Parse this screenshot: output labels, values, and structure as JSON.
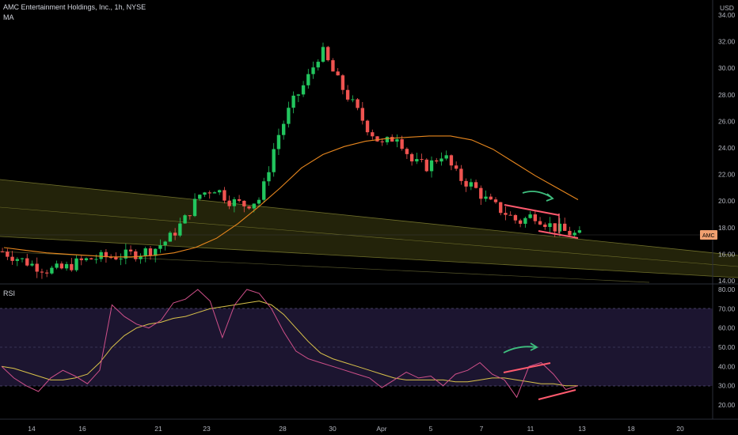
{
  "header": {
    "title": "AMC Entertainment Holdings, Inc., 1h, NYSE",
    "ma_label": "MA",
    "rsi_label": "RSI",
    "currency": "USD",
    "ticker_badge": "AMC"
  },
  "colors": {
    "background": "#000000",
    "up_candle": "#26a69a",
    "up_candle_bright": "#22c55e",
    "down_candle": "#ef5350",
    "ma_line": "#e8871e",
    "channel_fill": "#3a3a10",
    "rsi_line": "#d0508a",
    "rsi_ma_line": "#d9c24a",
    "rsi_band": "#1c1530",
    "trend_lines": "#ff5a6e",
    "arrow": "#3fbf7f",
    "ticker_badge": "#f0a070"
  },
  "chart_data": [
    {
      "type": "candlestick",
      "title": "AMC Entertainment Holdings, Inc., 1h, NYSE",
      "ylabel": "USD",
      "ylim": [
        14,
        35
      ],
      "y_ticks": [
        "34.00",
        "32.00",
        "30.00",
        "28.00",
        "26.00",
        "24.00",
        "22.00",
        "20.00",
        "18.00",
        "16.00",
        "14.00"
      ],
      "x_ticks": [
        "14",
        "16",
        "21",
        "23",
        "28",
        "30",
        "Apr",
        "5",
        "7",
        "11",
        "13",
        "18",
        "20"
      ],
      "series": [
        {
          "name": "MA",
          "values": [
            16.5,
            16.3,
            16.1,
            16.0,
            15.9,
            15.8,
            15.8,
            15.9,
            16.1,
            16.5,
            17.2,
            18.3,
            19.6,
            21.0,
            22.5,
            23.5,
            24.1,
            24.5,
            24.7,
            24.8,
            24.9,
            24.9,
            24.6,
            23.9,
            22.9,
            21.9,
            21.0,
            20.1
          ]
        }
      ],
      "closes_approx": [
        16.2,
        15.7,
        15.2,
        14.8,
        14.9,
        15.4,
        15.7,
        15.8,
        15.9,
        16.1,
        16.4,
        17.2,
        18.6,
        20.5,
        21.0,
        20.0,
        19.7,
        20.2,
        24.5,
        27.2,
        29.0,
        31.4,
        29.2,
        27.4,
        25.6,
        24.2,
        25.0,
        22.9,
        22.6,
        23.6,
        21.8,
        21.1,
        19.9,
        19.2,
        18.4,
        19.0,
        18.2,
        17.7,
        17.4
      ],
      "annotations": [
        {
          "type": "trend_line",
          "from": 19.9,
          "to": 19.0
        },
        {
          "type": "trend_line",
          "from": 17.8,
          "to": 17.3
        }
      ]
    },
    {
      "type": "line",
      "title": "RSI",
      "ylim": [
        14,
        82
      ],
      "y_ticks": [
        "80.00",
        "70.00",
        "60.00",
        "50.00",
        "40.00",
        "30.00",
        "20.00"
      ],
      "overbought": 70,
      "oversold": 30,
      "series": [
        {
          "name": "RSI",
          "values": [
            40,
            34,
            30,
            27,
            34,
            38,
            35,
            31,
            38,
            72,
            66,
            62,
            60,
            64,
            73,
            75,
            80,
            74,
            55,
            72,
            80,
            78,
            70,
            58,
            48,
            44,
            42,
            40,
            38,
            36,
            34,
            29,
            33,
            37,
            34,
            35,
            30,
            36,
            38,
            42,
            36,
            33,
            24,
            40,
            42,
            36,
            28,
            30
          ]
        },
        {
          "name": "RSI MA",
          "values": [
            40,
            39,
            37,
            35,
            33,
            33,
            34,
            36,
            42,
            50,
            56,
            60,
            62,
            63,
            65,
            66,
            68,
            70,
            71,
            72,
            73,
            74,
            72,
            67,
            60,
            53,
            47,
            44,
            42,
            40,
            38,
            36,
            34,
            33,
            33,
            33,
            33,
            32,
            32,
            33,
            34,
            34,
            33,
            32,
            31,
            31,
            30,
            30
          ]
        }
      ]
    }
  ]
}
